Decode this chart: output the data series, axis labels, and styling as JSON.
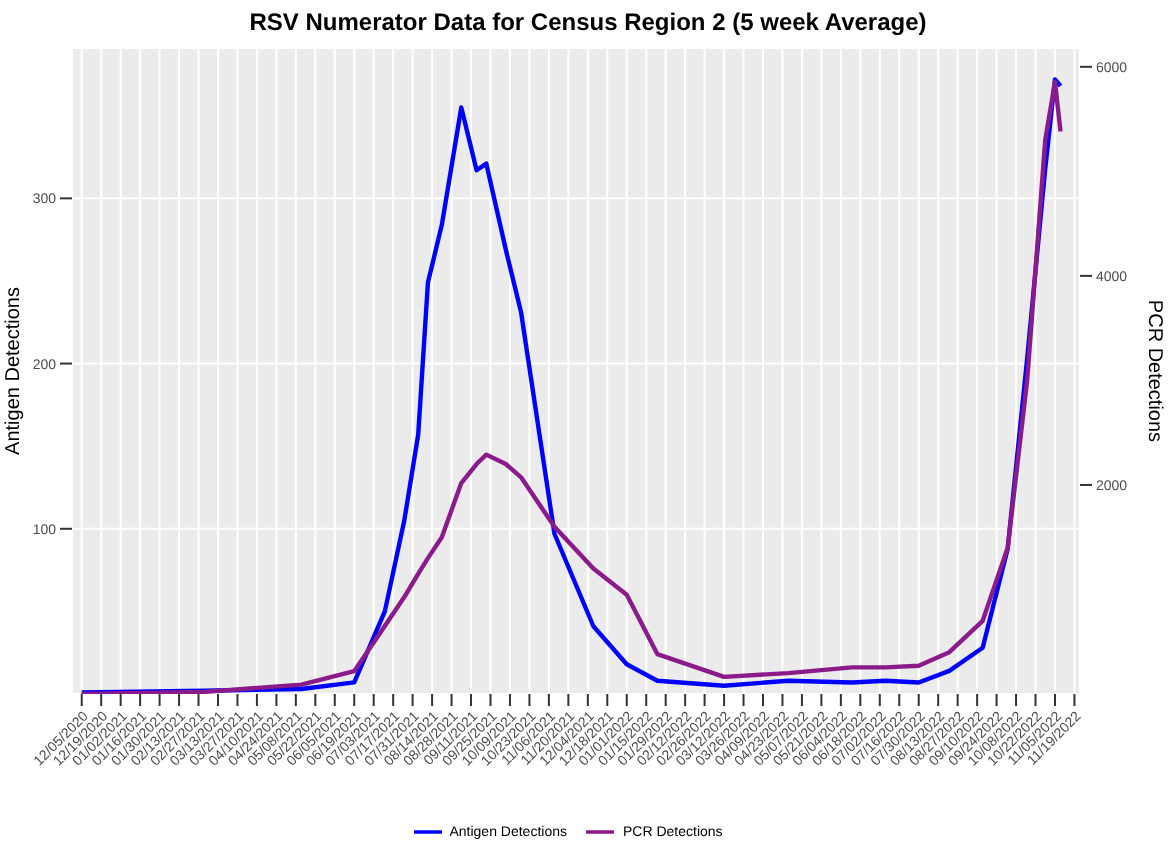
{
  "chart_data": {
    "type": "line",
    "title": "RSV Numerator Data for Census Region 2 (5 week Average)",
    "ylabel": "Antigen Detections",
    "y2label": "PCR Detections",
    "x": [
      "2020-12-05",
      "2021-03-03",
      "2021-05-12",
      "2021-06-19",
      "2021-07-11",
      "2021-07-25",
      "2021-08-04",
      "2021-08-11",
      "2021-08-21",
      "2021-09-04",
      "2021-09-15",
      "2021-09-22",
      "2021-10-06",
      "2021-10-17",
      "2021-11-10",
      "2021-12-08",
      "2022-01-01",
      "2022-01-23",
      "2022-03-12",
      "2022-04-27",
      "2022-06-12",
      "2022-07-06",
      "2022-07-30",
      "2022-08-21",
      "2022-09-14",
      "2022-10-02",
      "2022-10-16",
      "2022-10-29",
      "2022-11-05",
      "2022-11-09"
    ],
    "series": [
      {
        "name": "Antigen Detections",
        "color": "#0000ff",
        "values": [
          1,
          2,
          3,
          7,
          50,
          105,
          157,
          249,
          284,
          355,
          317,
          321,
          269,
          231,
          97,
          41,
          18,
          8,
          5,
          8,
          7,
          8,
          7,
          14,
          28,
          88,
          203,
          318,
          372,
          368
        ]
      },
      {
        "name": "PCR Detections",
        "color": "#8b1a8b",
        "axis": "y2",
        "values": [
          0,
          20,
          90,
          218,
          650,
          927,
          1150,
          1300,
          1500,
          2018,
          2200,
          2290,
          2200,
          2073,
          1600,
          1200,
          950,
          382,
          164,
          200,
          255,
          255,
          270,
          400,
          700,
          1400,
          3000,
          5300,
          5855,
          5382
        ]
      }
    ],
    "xlim": [
      "2020-11-28",
      "2022-11-23"
    ],
    "xticks": [
      {
        "value": "2020-12-05",
        "label": "12/05/2020"
      },
      {
        "value": "2020-12-19",
        "label": "12/19/2020"
      },
      {
        "value": "2021-01-02",
        "label": "01/02/2021"
      },
      {
        "value": "2021-01-16",
        "label": "01/16/2021"
      },
      {
        "value": "2021-01-30",
        "label": "01/30/2021"
      },
      {
        "value": "2021-02-13",
        "label": "02/13/2021"
      },
      {
        "value": "2021-02-27",
        "label": "02/27/2021"
      },
      {
        "value": "2021-03-13",
        "label": "03/13/2021"
      },
      {
        "value": "2021-03-27",
        "label": "03/27/2021"
      },
      {
        "value": "2021-04-10",
        "label": "04/10/2021"
      },
      {
        "value": "2021-04-24",
        "label": "04/24/2021"
      },
      {
        "value": "2021-05-08",
        "label": "05/08/2021"
      },
      {
        "value": "2021-05-22",
        "label": "05/22/2021"
      },
      {
        "value": "2021-06-05",
        "label": "06/05/2021"
      },
      {
        "value": "2021-06-19",
        "label": "06/19/2021"
      },
      {
        "value": "2021-07-03",
        "label": "07/03/2021"
      },
      {
        "value": "2021-07-17",
        "label": "07/17/2021"
      },
      {
        "value": "2021-07-31",
        "label": "07/31/2021"
      },
      {
        "value": "2021-08-14",
        "label": "08/14/2021"
      },
      {
        "value": "2021-08-28",
        "label": "08/28/2021"
      },
      {
        "value": "2021-09-11",
        "label": "09/11/2021"
      },
      {
        "value": "2021-09-25",
        "label": "09/25/2021"
      },
      {
        "value": "2021-10-09",
        "label": "10/09/2021"
      },
      {
        "value": "2021-10-23",
        "label": "10/23/2021"
      },
      {
        "value": "2021-11-06",
        "label": "11/06/2021"
      },
      {
        "value": "2021-11-20",
        "label": "11/20/2021"
      },
      {
        "value": "2021-12-04",
        "label": "12/04/2021"
      },
      {
        "value": "2021-12-18",
        "label": "12/18/2021"
      },
      {
        "value": "2022-01-01",
        "label": "01/01/2022"
      },
      {
        "value": "2022-01-15",
        "label": "01/15/2022"
      },
      {
        "value": "2022-01-29",
        "label": "01/29/2022"
      },
      {
        "value": "2022-02-12",
        "label": "02/12/2022"
      },
      {
        "value": "2022-02-26",
        "label": "02/26/2022"
      },
      {
        "value": "2022-03-12",
        "label": "03/12/2022"
      },
      {
        "value": "2022-03-26",
        "label": "03/26/2022"
      },
      {
        "value": "2022-04-09",
        "label": "04/09/2022"
      },
      {
        "value": "2022-04-23",
        "label": "04/23/2022"
      },
      {
        "value": "2022-05-07",
        "label": "05/07/2022"
      },
      {
        "value": "2022-05-21",
        "label": "05/21/2022"
      },
      {
        "value": "2022-06-04",
        "label": "06/04/2022"
      },
      {
        "value": "2022-06-18",
        "label": "06/18/2022"
      },
      {
        "value": "2022-07-02",
        "label": "07/02/2022"
      },
      {
        "value": "2022-07-16",
        "label": "07/16/2022"
      },
      {
        "value": "2022-07-30",
        "label": "07/30/2022"
      },
      {
        "value": "2022-08-13",
        "label": "08/13/2022"
      },
      {
        "value": "2022-08-27",
        "label": "08/27/2022"
      },
      {
        "value": "2022-09-10",
        "label": "09/10/2022"
      },
      {
        "value": "2022-09-24",
        "label": "09/24/2022"
      },
      {
        "value": "2022-10-08",
        "label": "10/08/2022"
      },
      {
        "value": "2022-10-22",
        "label": "10/22/2022"
      },
      {
        "value": "2022-11-05",
        "label": "11/05/2022"
      },
      {
        "value": "2022-11-19",
        "label": "11/19/2022"
      }
    ],
    "ylim": [
      0,
      391
    ],
    "yticks": [
      100,
      200,
      300
    ],
    "y2lim": [
      0,
      6180
    ],
    "y2ticks": [
      2000,
      4000,
      6000
    ],
    "grid": true,
    "legend": "bottom",
    "marker": "none",
    "line_style": "solid"
  }
}
